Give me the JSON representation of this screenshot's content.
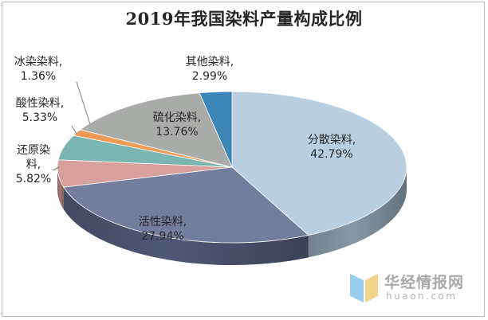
{
  "chart_data": {
    "type": "pie",
    "title": "2019年我国染料产量构成比例",
    "slices": [
      {
        "name": "分散染料",
        "label_lines": [
          "分散染料,",
          "42.79%"
        ],
        "value": 42.79,
        "color": "#B7CFE0",
        "side": "#8698A6"
      },
      {
        "name": "活性染料",
        "label_lines": [
          "活性染料,",
          "27.94%"
        ],
        "value": 27.94,
        "color": "#737D9E",
        "side": "#4E5775"
      },
      {
        "name": "还原染料",
        "label_lines": [
          "还原染",
          "料,",
          "5.82%"
        ],
        "value": 5.82,
        "color": "#D7A09C",
        "side": "#A47571"
      },
      {
        "name": "酸性染料",
        "label_lines": [
          "酸性染料,",
          "5.33%"
        ],
        "value": 5.33,
        "color": "#7AB5B1",
        "side": "#518581"
      },
      {
        "name": "冰染染料",
        "label_lines": [
          "冰染染料,",
          "1.36%"
        ],
        "value": 1.36,
        "color": "#EE9A55",
        "side": "#B56F36"
      },
      {
        "name": "硫化染料",
        "label_lines": [
          "硫化染料,",
          "13.76%"
        ],
        "value": 13.76,
        "color": "#A9ABA8",
        "side": "#7A7C79"
      },
      {
        "name": "其他染料",
        "label_lines": [
          "其他染料,",
          "2.99%"
        ],
        "value": 2.99,
        "color": "#3C86B7",
        "side": "#2A6389"
      }
    ]
  },
  "watermark": {
    "cn": "华经情报网",
    "en": "huaon.com"
  }
}
